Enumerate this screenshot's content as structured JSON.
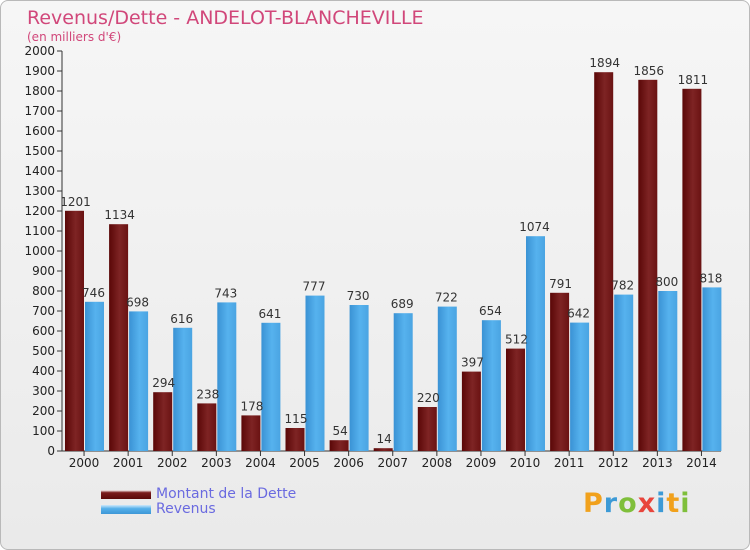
{
  "header": {
    "title": "Revenus/Dette - ANDELOT-BLANCHEVILLE",
    "subtitle": "(en milliers d'€)"
  },
  "legend": {
    "debt_label": "Montant de la Dette",
    "revenue_label": "Revenus"
  },
  "logo": {
    "text": "Proxiti"
  },
  "colors": {
    "debt": "#7a1b1b",
    "revenue": "#4aa6e6",
    "title": "#d1477a",
    "legend_text": "#6a6ae0"
  },
  "chart_data": {
    "type": "bar",
    "title": "Revenus/Dette - ANDELOT-BLANCHEVILLE",
    "subtitle": "(en milliers d'€)",
    "categories": [
      "2000",
      "2001",
      "2002",
      "2003",
      "2004",
      "2005",
      "2006",
      "2007",
      "2008",
      "2009",
      "2010",
      "2011",
      "2012",
      "2013",
      "2014"
    ],
    "series": [
      {
        "name": "Montant de la Dette",
        "values": [
          1201,
          1134,
          294,
          238,
          178,
          115,
          54,
          14,
          220,
          397,
          512,
          791,
          1894,
          1856,
          1811
        ]
      },
      {
        "name": "Revenus",
        "values": [
          746,
          698,
          616,
          743,
          641,
          777,
          730,
          689,
          722,
          654,
          1074,
          642,
          782,
          800,
          818
        ]
      }
    ],
    "ylim": [
      0,
      2000
    ],
    "yticks": [
      0,
      100,
      200,
      300,
      400,
      500,
      600,
      700,
      800,
      900,
      1000,
      1100,
      1200,
      1300,
      1400,
      1500,
      1600,
      1700,
      1800,
      1900,
      2000
    ],
    "grid": false,
    "legend_position": "bottom-left"
  }
}
